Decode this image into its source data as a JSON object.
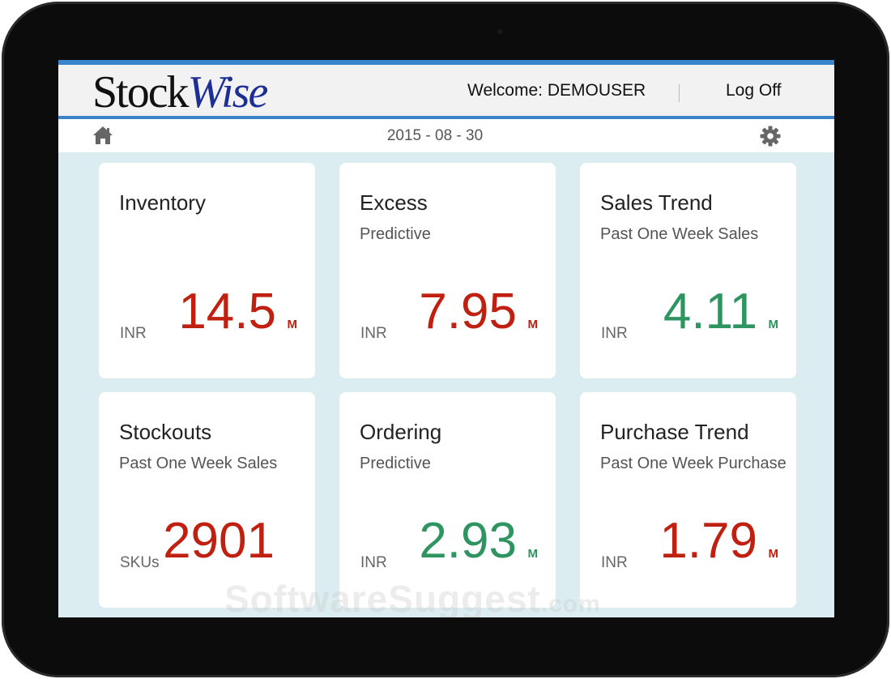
{
  "header": {
    "logo_part1": "Stock",
    "logo_part2": "Wise",
    "welcome_label": "Welcome:",
    "username": "DEMOUSER",
    "logoff_label": "Log Off"
  },
  "subbar": {
    "date": "2015 - 08 - 30",
    "home_icon": "home-icon",
    "settings_icon": "gear-icon"
  },
  "colors": {
    "negative": "#c0200f",
    "positive": "#2e9460",
    "accent": "#3a84cc"
  },
  "cards": [
    {
      "title": "Inventory",
      "subtitle": "",
      "unit": "INR",
      "value": "14.5",
      "magnitude": "M",
      "status": "red"
    },
    {
      "title": "Excess",
      "subtitle": "Predictive",
      "unit": "INR",
      "value": "7.95",
      "magnitude": "M",
      "status": "red"
    },
    {
      "title": "Sales Trend",
      "subtitle": "Past One Week Sales",
      "unit": "INR",
      "value": "4.11",
      "magnitude": "M",
      "status": "green"
    },
    {
      "title": "Stockouts",
      "subtitle": "Past One Week Sales",
      "unit": "SKUs",
      "value": "2901",
      "magnitude": "",
      "status": "red"
    },
    {
      "title": "Ordering",
      "subtitle": "Predictive",
      "unit": "INR",
      "value": "2.93",
      "magnitude": "M",
      "status": "green"
    },
    {
      "title": "Purchase Trend",
      "subtitle": "Past One Week Purchase",
      "unit": "INR",
      "value": "1.79",
      "magnitude": "M",
      "status": "red"
    }
  ],
  "watermark": {
    "main": "SoftwareSuggest",
    "suffix": ".com"
  }
}
